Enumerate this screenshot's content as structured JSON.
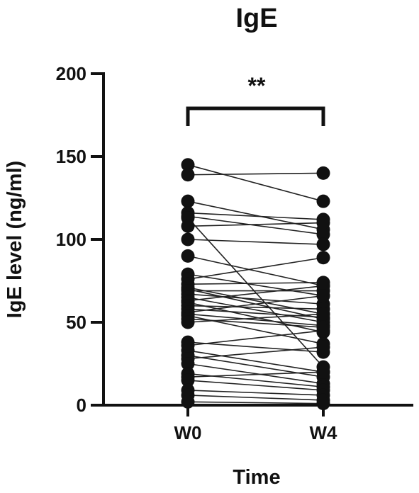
{
  "chart_data": {
    "type": "line",
    "title": "IgE",
    "xlabel": "Time",
    "ylabel": "IgE level (ng/ml)",
    "categories": [
      "W0",
      "W4"
    ],
    "ylim": [
      0,
      200
    ],
    "yticks": [
      "0",
      "50",
      "100",
      "150",
      "200"
    ],
    "significance": "**",
    "pairs": [
      [
        145,
        123
      ],
      [
        139,
        140
      ],
      [
        123,
        106
      ],
      [
        116,
        112
      ],
      [
        114,
        103
      ],
      [
        113,
        23
      ],
      [
        108,
        110
      ],
      [
        100,
        97
      ],
      [
        90,
        72
      ],
      [
        79,
        66
      ],
      [
        76,
        89
      ],
      [
        73,
        74
      ],
      [
        71,
        55
      ],
      [
        70,
        52
      ],
      [
        69,
        69
      ],
      [
        67,
        61
      ],
      [
        65,
        50
      ],
      [
        63,
        72
      ],
      [
        62,
        44
      ],
      [
        60,
        58
      ],
      [
        58,
        53
      ],
      [
        56,
        66
      ],
      [
        55,
        48
      ],
      [
        54,
        37
      ],
      [
        52,
        47
      ],
      [
        50,
        55
      ],
      [
        38,
        32
      ],
      [
        36,
        45
      ],
      [
        33,
        20
      ],
      [
        30,
        17
      ],
      [
        28,
        35
      ],
      [
        25,
        13
      ],
      [
        19,
        11
      ],
      [
        17,
        20
      ],
      [
        15,
        9
      ],
      [
        9,
        6
      ],
      [
        6,
        3
      ],
      [
        2,
        1
      ]
    ],
    "marker_color": "#111111",
    "line_color": "#222222"
  }
}
